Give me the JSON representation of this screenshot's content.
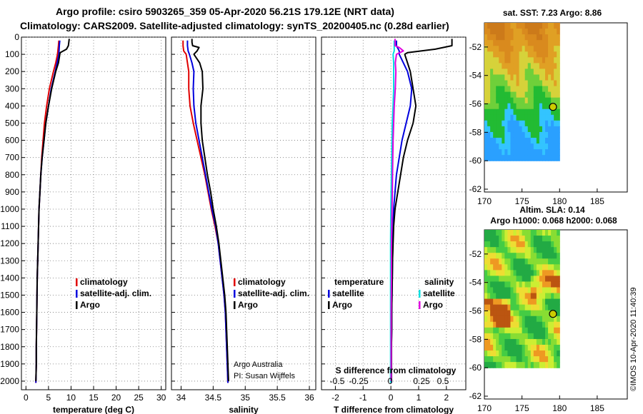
{
  "title": {
    "line1": "Argo profile: csiro 5903265_359 05-Apr-2020 56.21S 179.12E (NRT data)",
    "line2": "Climatology: CARS2009. Satellite-adjusted climatology: synTS_20200405.nc (0.28d earlier)"
  },
  "timestamp": "©IMOS 10-Apr-2020 11:40:39",
  "credits": {
    "line1": "Argo Australia",
    "line2": "PI: Susan Wijffels"
  },
  "colors": {
    "climatology": "#e00000",
    "satellite": "#0000dd",
    "argo": "#000000",
    "satellite_s": "#00e0e0",
    "argo_s": "#e000e0"
  },
  "chart_data": [
    {
      "type": "line",
      "panel": "temperature",
      "xlabel": "temperature (deg C)",
      "ylabel": "",
      "xlim": [
        -1,
        31
      ],
      "ylim": [
        2050,
        0
      ],
      "xticks": [
        0,
        5,
        10,
        15,
        20,
        25,
        30
      ],
      "yticks": [
        0,
        100,
        200,
        300,
        400,
        500,
        600,
        700,
        800,
        900,
        1000,
        1100,
        1200,
        1300,
        1400,
        1500,
        1600,
        1700,
        1800,
        1900,
        2000
      ],
      "legend": [
        "climatology",
        "satellite-adj. clim.",
        "Argo"
      ],
      "series": [
        {
          "name": "climatology",
          "color": "#e00000",
          "depth": [
            20,
            50,
            100,
            150,
            200,
            300,
            400,
            500,
            600,
            700,
            800,
            900,
            1000,
            1200,
            1400,
            1600,
            1800,
            1900,
            2010
          ],
          "values": [
            7.3,
            7.2,
            7.0,
            6.6,
            6.1,
            5.2,
            4.6,
            4.1,
            3.8,
            3.5,
            3.3,
            3.1,
            2.9,
            2.7,
            2.5,
            2.4,
            2.3,
            2.3,
            2.2
          ]
        },
        {
          "name": "satellite-adj. clim.",
          "color": "#0000dd",
          "depth": [
            20,
            50,
            100,
            150,
            200,
            300,
            400,
            500,
            600,
            700,
            800,
            900,
            1000,
            1200,
            1400,
            1600,
            1800,
            1900,
            2010
          ],
          "values": [
            7.5,
            7.4,
            7.3,
            6.9,
            6.5,
            5.6,
            5.0,
            4.4,
            4.0,
            3.6,
            3.3,
            3.1,
            2.9,
            2.7,
            2.5,
            2.4,
            2.3,
            2.3,
            2.2
          ]
        },
        {
          "name": "Argo",
          "color": "#000000",
          "depth": [
            10,
            30,
            50,
            70,
            90,
            100,
            150,
            200,
            300,
            400,
            500,
            600,
            700,
            800,
            900,
            1000,
            1200,
            1400,
            1600,
            1800,
            1900,
            2000
          ],
          "values": [
            9.6,
            9.5,
            9.4,
            9.0,
            7.6,
            7.5,
            7.2,
            6.6,
            5.7,
            5.0,
            4.4,
            4.0,
            3.6,
            3.3,
            3.1,
            2.9,
            2.7,
            2.5,
            2.4,
            2.3,
            2.3,
            2.2
          ]
        }
      ]
    },
    {
      "type": "line",
      "panel": "salinity",
      "xlabel": "salinity",
      "ylabel": "",
      "xlim": [
        33.85,
        36.1
      ],
      "ylim": [
        2050,
        0
      ],
      "xticks": [
        34,
        34.5,
        35,
        35.5,
        36
      ],
      "legend": [
        "climatology",
        "satellite-adj. clim.",
        "Argo"
      ],
      "series": [
        {
          "name": "climatology",
          "color": "#e00000",
          "depth": [
            20,
            50,
            80,
            100,
            150,
            200,
            300,
            400,
            500,
            600,
            700,
            800,
            900,
            1000,
            1100,
            1200,
            1300,
            1400,
            1500,
            1600,
            1700,
            1800,
            1900,
            2010
          ],
          "values": [
            34.03,
            34.03,
            34.04,
            34.08,
            34.1,
            34.12,
            34.12,
            34.14,
            34.19,
            34.25,
            34.31,
            34.37,
            34.42,
            34.47,
            34.53,
            34.58,
            34.61,
            34.64,
            34.67,
            34.69,
            34.7,
            34.71,
            34.72,
            34.73
          ]
        },
        {
          "name": "satellite-adj. clim.",
          "color": "#0000dd",
          "depth": [
            20,
            50,
            80,
            100,
            150,
            200,
            300,
            400,
            500,
            600,
            700,
            800,
            900,
            1000,
            1100,
            1200,
            1300,
            1400,
            1500,
            1600,
            1700,
            1800,
            1900,
            2010
          ],
          "values": [
            34.1,
            34.1,
            34.11,
            34.13,
            34.17,
            34.2,
            34.19,
            34.2,
            34.23,
            34.28,
            34.33,
            34.38,
            34.43,
            34.48,
            34.54,
            34.58,
            34.61,
            34.64,
            34.67,
            34.69,
            34.7,
            34.71,
            34.72,
            34.73
          ]
        },
        {
          "name": "Argo",
          "color": "#000000",
          "depth": [
            10,
            30,
            50,
            60,
            80,
            100,
            150,
            200,
            300,
            400,
            500,
            600,
            700,
            800,
            900,
            1000,
            1100,
            1200,
            1300,
            1400,
            1500,
            1600,
            1700,
            1800,
            1900,
            2000
          ],
          "values": [
            34.17,
            34.17,
            34.18,
            34.28,
            34.25,
            34.2,
            34.29,
            34.33,
            34.34,
            34.31,
            34.31,
            34.33,
            34.37,
            34.41,
            34.46,
            34.5,
            34.55,
            34.59,
            34.62,
            34.65,
            34.68,
            34.7,
            34.71,
            34.72,
            34.73,
            34.74
          ]
        }
      ]
    },
    {
      "type": "line",
      "panel": "difference",
      "xlabel": "T difference from climatology",
      "xlabel2": "S difference from climatology",
      "xlim": [
        -2.5,
        2.7
      ],
      "ylim": [
        2050,
        0
      ],
      "xticks": [
        -2,
        -1,
        0,
        1,
        2
      ],
      "xticks_s": [
        -0.5,
        -0.25,
        0,
        0.25,
        0.5
      ],
      "legend_left_title": "temperature",
      "legend_right_title": "salinity",
      "legend_left": [
        "satellite",
        "Argo"
      ],
      "legend_right": [
        "satellite",
        "Argo"
      ],
      "series": [
        {
          "name": "temperature satellite",
          "color": "#0000dd",
          "depth": [
            20,
            50,
            80,
            100,
            150,
            200,
            300,
            400,
            500,
            600,
            700,
            800,
            900,
            1000,
            1100,
            1200,
            1300,
            1400,
            1500,
            1600,
            1700,
            1800,
            1900,
            2010
          ],
          "values": [
            0.2,
            0.2,
            0.3,
            0.3,
            0.45,
            0.6,
            0.75,
            0.7,
            0.55,
            0.4,
            0.3,
            0.2,
            0.15,
            0.1,
            0.08,
            0.07,
            0.06,
            0.05,
            0.04,
            0.03,
            0.03,
            0.02,
            0.02,
            0.02
          ]
        },
        {
          "name": "temperature Argo",
          "color": "#000000",
          "depth": [
            10,
            30,
            50,
            70,
            90,
            100,
            150,
            200,
            300,
            400,
            500,
            600,
            700,
            800,
            900,
            1000,
            1100,
            1200,
            1300,
            1400,
            1500,
            1600,
            1700,
            1800,
            1900,
            2000
          ],
          "values": [
            2.2,
            2.2,
            2.2,
            1.6,
            0.6,
            0.5,
            0.6,
            0.7,
            0.8,
            0.9,
            0.8,
            0.6,
            0.45,
            0.35,
            0.25,
            0.15,
            0.1,
            0.08,
            0.06,
            0.05,
            0.04,
            0.03,
            0.03,
            0.02,
            0.02,
            0.02
          ]
        },
        {
          "name": "salinity satellite",
          "color": "#00e0e0",
          "depth": [
            20,
            50,
            80,
            100,
            150,
            200,
            300,
            400,
            500,
            600,
            700,
            800,
            900,
            1000,
            1200,
            1400,
            1600,
            1800,
            2010
          ],
          "values": [
            0.12,
            0.12,
            0.12,
            0.08,
            0.1,
            0.1,
            0.1,
            0.08,
            0.05,
            0.04,
            0.03,
            0.02,
            0.01,
            0.0,
            -0.01,
            -0.01,
            -0.01,
            -0.01,
            -0.01
          ]
        },
        {
          "name": "salinity Argo",
          "color": "#e000e0",
          "depth": [
            10,
            30,
            50,
            60,
            80,
            100,
            150,
            200,
            300,
            400,
            500,
            600,
            700,
            800,
            900,
            1000,
            1200,
            1400,
            1600,
            1800,
            2000
          ],
          "values": [
            0.15,
            0.15,
            0.15,
            0.3,
            0.45,
            0.2,
            0.16,
            0.18,
            0.16,
            0.12,
            0.1,
            0.08,
            0.07,
            0.06,
            0.05,
            0.04,
            0.02,
            0.02,
            0.01,
            0.01,
            0.01
          ]
        }
      ]
    },
    {
      "type": "heatmap",
      "panel": "sat-sst-map",
      "title": "sat. SST: 7.23 Argo: 8.86",
      "xlim": [
        170,
        189
      ],
      "ylim": [
        -62.2,
        -50.3
      ],
      "xticks": [
        170,
        175,
        180,
        185
      ],
      "yticks": [
        -52,
        -54,
        -56,
        -58,
        -60,
        -62
      ],
      "data_lon": [
        170,
        180
      ],
      "data_lat": [
        -60,
        -50.3
      ],
      "field": "sst",
      "argo_position": [
        179.12,
        -56.21
      ]
    },
    {
      "type": "heatmap",
      "panel": "altim-sla-map",
      "title": "Altim. SLA: 0.14",
      "subtitle": "Argo h1000: 0.068 h2000: 0.068",
      "xlim": [
        170,
        189
      ],
      "ylim": [
        -62.2,
        -50.3
      ],
      "xticks": [
        170,
        175,
        180,
        185
      ],
      "yticks": [
        -52,
        -54,
        -56,
        -58,
        -60,
        -62
      ],
      "data_lon": [
        170,
        180
      ],
      "data_lat": [
        -60,
        -50.3
      ],
      "field": "sla",
      "argo_position": [
        179.12,
        -56.21
      ]
    }
  ]
}
